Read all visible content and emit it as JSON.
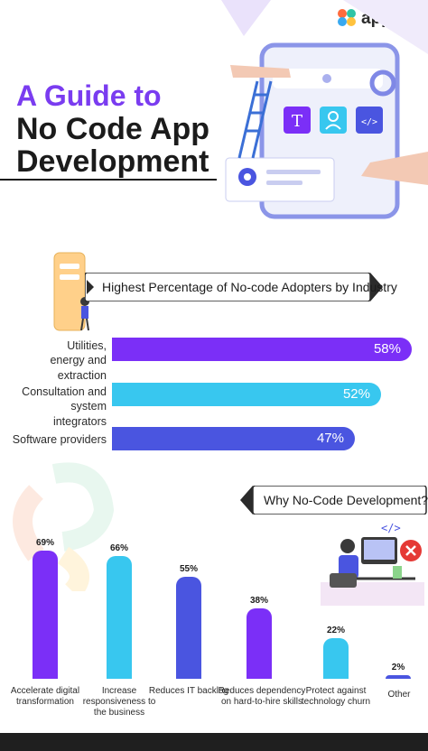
{
  "brand": {
    "name": "appypie"
  },
  "title": {
    "line1": "A Guide to",
    "line2": "No Code App",
    "line3": "Development"
  },
  "colors": {
    "purple": "#7b2ff7",
    "cyan": "#38c7ef",
    "blue": "#4a55e0",
    "dark": "#1f1f1f"
  },
  "illustration": {
    "icons": [
      "text-icon",
      "user-icon",
      "code-icon",
      "gear-icon"
    ],
    "labels": [
      "T",
      "</>"
    ]
  },
  "chart_data": [
    {
      "type": "bar",
      "orientation": "horizontal",
      "title": "Highest Percentage of No-code Adopters by Industry",
      "categories": [
        "Utilities, energy and extraction",
        "Consultation and system integrators",
        "Software providers"
      ],
      "values": [
        58,
        52,
        47
      ],
      "labels": [
        "58%",
        "52%",
        "47%"
      ],
      "colors": [
        "#7b2ff7",
        "#38c7ef",
        "#4a55e0"
      ]
    },
    {
      "type": "bar",
      "title": "Why No-Code Development?",
      "categories": [
        "Accelerate digital transformation",
        "Increase responsiveness to the business",
        "Reduces IT backlog",
        "Reduces dependency on hard-to-hire skills",
        "Protect against technology churn",
        "Other"
      ],
      "values": [
        69,
        66,
        55,
        38,
        22,
        2
      ],
      "labels": [
        "69%",
        "66%",
        "55%",
        "38%",
        "22%",
        "2%"
      ],
      "colors": [
        "#7b2ff7",
        "#38c7ef",
        "#4a55e0",
        "#7b2ff7",
        "#38c7ef",
        "#4a55e0"
      ]
    }
  ]
}
